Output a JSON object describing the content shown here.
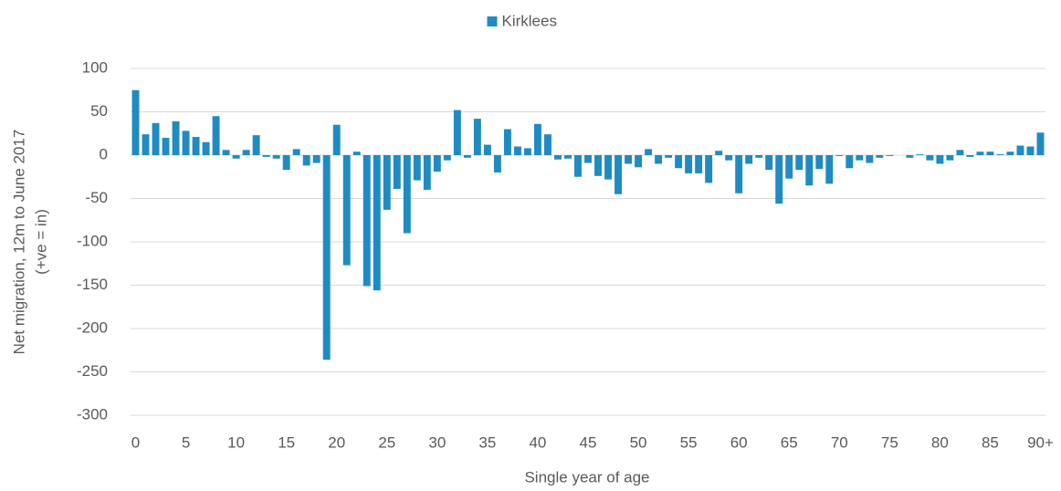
{
  "chart_data": {
    "type": "bar",
    "legend_position": "top",
    "xlabel": "Single year of age",
    "ylabel": [
      "Net migration, 12m to June 2017",
      "(+ve = in)"
    ],
    "categories": [
      "0",
      null,
      null,
      null,
      null,
      "5",
      null,
      null,
      null,
      null,
      "10",
      null,
      null,
      null,
      null,
      "15",
      null,
      null,
      null,
      null,
      "20",
      null,
      null,
      null,
      null,
      "25",
      null,
      null,
      null,
      null,
      "30",
      null,
      null,
      null,
      null,
      "35",
      null,
      null,
      null,
      null,
      "40",
      null,
      null,
      null,
      null,
      "45",
      null,
      null,
      null,
      null,
      "50",
      null,
      null,
      null,
      null,
      "55",
      null,
      null,
      null,
      null,
      "60",
      null,
      null,
      null,
      null,
      "65",
      null,
      null,
      null,
      null,
      "70",
      null,
      null,
      null,
      null,
      "75",
      null,
      null,
      null,
      null,
      "80",
      null,
      null,
      null,
      null,
      "85",
      null,
      null,
      null,
      null,
      "90+"
    ],
    "series": [
      {
        "name": "Kirklees",
        "color": "#1f8bc2",
        "values": [
          75,
          24,
          37,
          20,
          39,
          28,
          21,
          15,
          45,
          6,
          -4,
          6,
          23,
          -2,
          -4,
          -17,
          7,
          -12,
          -9,
          -236,
          35,
          -127,
          4,
          -151,
          -156,
          -63,
          -39,
          -90,
          -29,
          -40,
          -19,
          -6,
          52,
          -3,
          42,
          12,
          -20,
          30,
          10,
          8,
          36,
          24,
          -5,
          -4,
          -25,
          -9,
          -24,
          -28,
          -45,
          -10,
          -14,
          7,
          -10,
          -3,
          -15,
          -21,
          -21,
          -32,
          5,
          -6,
          -44,
          -10,
          -3,
          -17,
          -56,
          -27,
          -17,
          -35,
          -16,
          -33,
          -1,
          -15,
          -6,
          -9,
          -3,
          -1,
          0,
          -3,
          1,
          -6,
          -10,
          -6,
          6,
          -2,
          4,
          4,
          1,
          4,
          11,
          10,
          26
        ]
      }
    ],
    "ylim": [
      -300,
      100
    ],
    "yticks": [
      -300,
      -250,
      -200,
      -150,
      -100,
      -50,
      0,
      50,
      100
    ],
    "grid": true
  }
}
